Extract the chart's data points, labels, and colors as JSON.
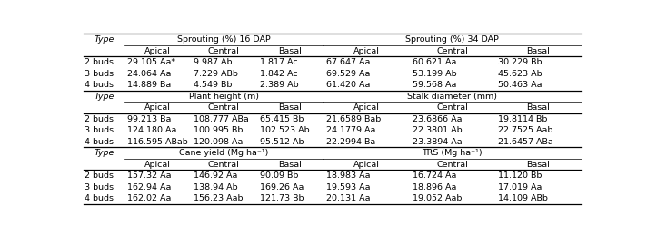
{
  "sections": [
    {
      "left_header": "Sprouting (%) 16 DAP",
      "right_header": "Sprouting (%) 34 DAP",
      "rows": [
        [
          "2 buds",
          "29.105 Aa*",
          "9.987 Ab",
          "1.817 Ac",
          "67.647 Aa",
          "60.621 Aa",
          "30.229 Bb"
        ],
        [
          "3 buds",
          "24.064 Aa",
          "7.229 ABb",
          "1.842 Ac",
          "69.529 Aa",
          "53.199 Ab",
          "45.623 Ab"
        ],
        [
          "4 buds",
          "14.889 Ba",
          "4.549 Bb",
          "2.389 Ab",
          "61.420 Aa",
          "59.568 Aa",
          "50.463 Aa"
        ]
      ]
    },
    {
      "left_header": "Plant height (m)",
      "right_header": "Stalk diameter (mm)",
      "rows": [
        [
          "2 buds",
          "99.213 Ba",
          "108.777 ABa",
          "65.415 Bb",
          "21.6589 Bab",
          "23.6866 Aa",
          "19.8114 Bb"
        ],
        [
          "3 buds",
          "124.180 Aa",
          "100.995 Bb",
          "102.523 Ab",
          "24.1779 Aa",
          "22.3801 Ab",
          "22.7525 Aab"
        ],
        [
          "4 buds",
          "116.595 ABab",
          "120.098 Aa",
          "95.512 Ab",
          "22.2994 Ba",
          "23.3894 Aa",
          "21.6457 ABa"
        ]
      ]
    },
    {
      "left_header": "Cane yield (Mg ha⁻¹)",
      "right_header": "TRS (Mg ha⁻¹)",
      "rows": [
        [
          "2 buds",
          "157.32 Aa",
          "146.92 Aa",
          "90.09 Bb",
          "18.983 Aa",
          "16.724 Aa",
          "11.120 Bb"
        ],
        [
          "3 buds",
          "162.94 Aa",
          "138.94 Ab",
          "169.26 Aa",
          "19.593 Aa",
          "18.896 Aa",
          "17.019 Aa"
        ],
        [
          "4 buds",
          "162.02 Aa",
          "156.23 Aab",
          "121.73 Bb",
          "20.131 Aa",
          "19.052 Aab",
          "14.109 ABb"
        ]
      ]
    }
  ],
  "sub_cols": [
    "Apical",
    "Central",
    "Basal",
    "Apical",
    "Central",
    "Basal"
  ],
  "bg_color": "#ffffff",
  "text_color": "#000000",
  "font_size": 6.8,
  "header_font_size": 6.8
}
